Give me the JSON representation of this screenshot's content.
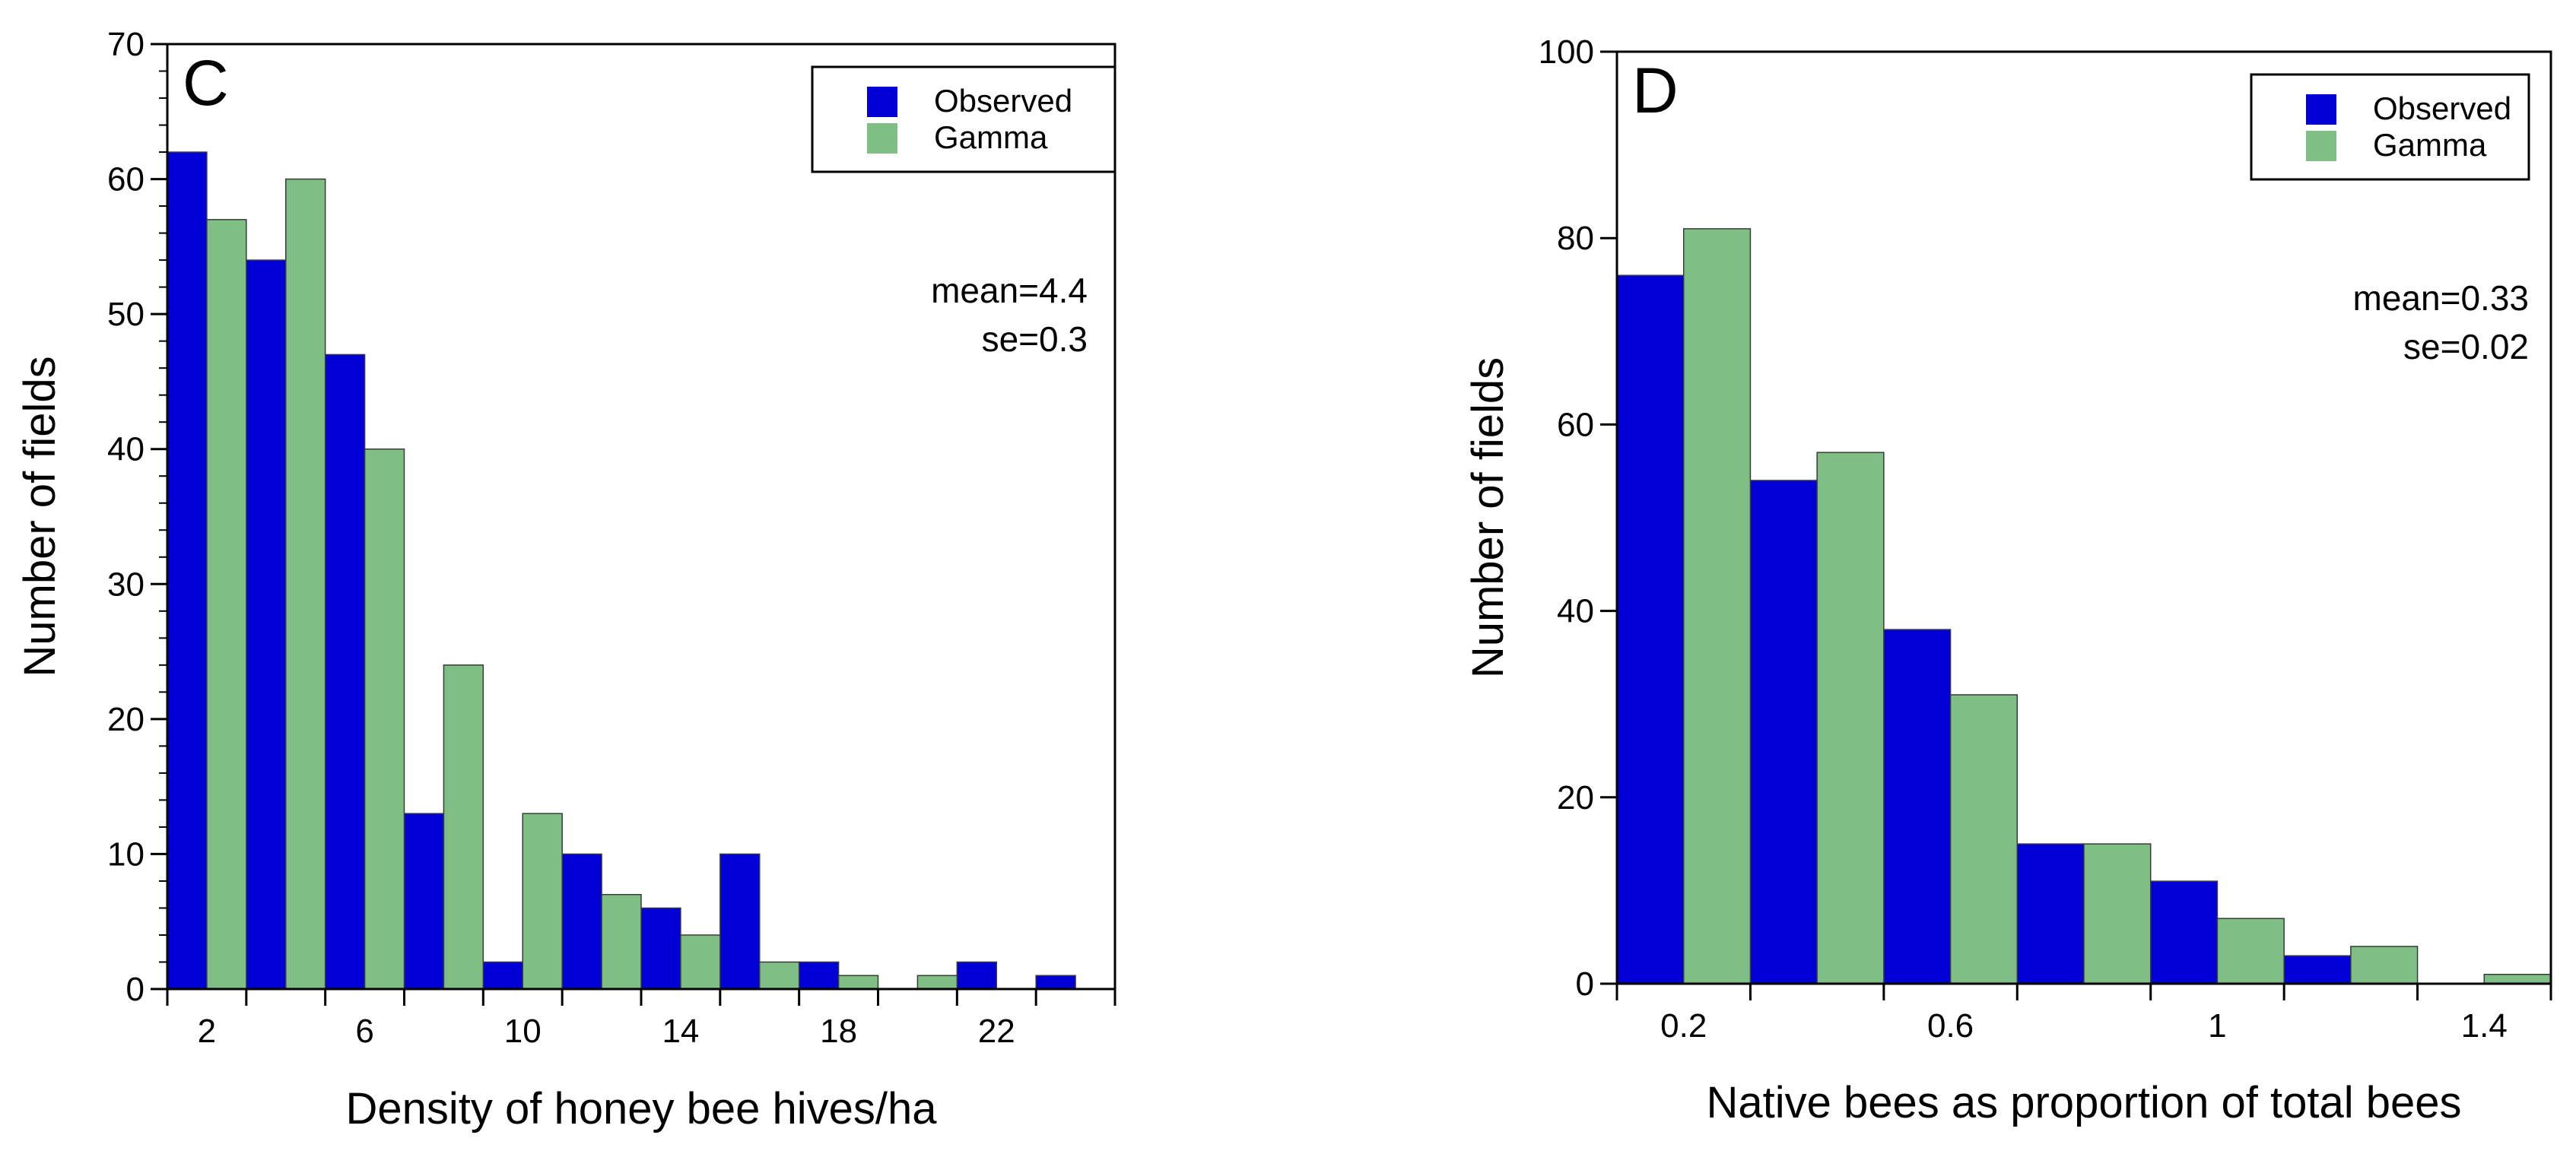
{
  "chart_data": [
    {
      "type": "bar",
      "panel_label": "C",
      "xlabel": "Density of honey bee hives/ha",
      "ylabel": "Number of fields",
      "ylim": [
        0,
        70
      ],
      "yticks": [
        0,
        10,
        20,
        30,
        40,
        50,
        60,
        70
      ],
      "xticklabels": [
        "2",
        "6",
        "10",
        "14",
        "18",
        "22"
      ],
      "categories": [
        "2",
        "4",
        "6",
        "8",
        "10",
        "12",
        "14",
        "16",
        "18",
        "20",
        "22",
        "24"
      ],
      "series": [
        {
          "name": "Observed",
          "color": "#0000d6",
          "values": [
            62,
            54,
            47,
            13,
            2,
            10,
            6,
            10,
            2,
            0,
            2,
            1
          ]
        },
        {
          "name": "Gamma",
          "color": "#7fbf86",
          "values": [
            57,
            60,
            40,
            24,
            13,
            7,
            4,
            2,
            1,
            1,
            0,
            0
          ]
        }
      ],
      "annotations": [
        "mean=4.4",
        "se=0.3"
      ],
      "legend": "top-right",
      "grid": false
    },
    {
      "type": "bar",
      "panel_label": "D",
      "xlabel": "Native bees as proportion of total bees",
      "ylabel": "Number of fields",
      "ylim": [
        0,
        100
      ],
      "yticks": [
        0,
        20,
        40,
        60,
        80,
        100
      ],
      "xticklabels": [
        "0.2",
        "0.6",
        "1",
        "1.4"
      ],
      "categories": [
        "0.2",
        "0.4",
        "0.6",
        "0.8",
        "1",
        "1.2",
        "1.4"
      ],
      "series": [
        {
          "name": "Observed",
          "color": "#0000d6",
          "values": [
            76,
            54,
            38,
            15,
            11,
            3,
            0
          ]
        },
        {
          "name": "Gamma",
          "color": "#7fbf86",
          "values": [
            81,
            57,
            31,
            15,
            7,
            4,
            1
          ]
        }
      ],
      "annotations": [
        "mean=0.33",
        "se=0.02"
      ],
      "legend": "top-right",
      "grid": false
    }
  ]
}
